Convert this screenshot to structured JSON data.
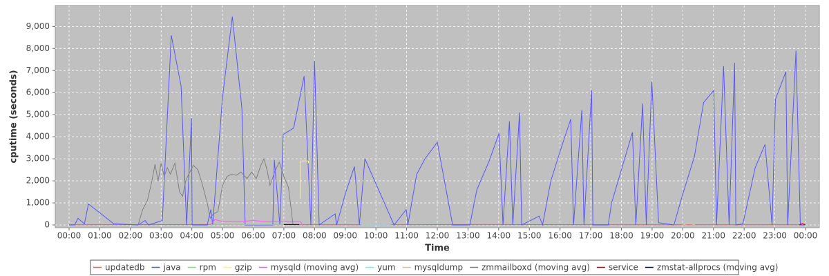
{
  "chart_data": {
    "type": "line",
    "x_label": "Time",
    "y_label": "cputime (seconds)",
    "xlim": [
      -0.45,
      24.45
    ],
    "ylim": [
      -125,
      9950
    ],
    "xticks": [
      {
        "value": 0,
        "label": "00:00"
      },
      {
        "value": 1,
        "label": "01:00"
      },
      {
        "value": 2,
        "label": "02:00"
      },
      {
        "value": 3,
        "label": "03:00"
      },
      {
        "value": 4,
        "label": "04:00"
      },
      {
        "value": 5,
        "label": "05:00"
      },
      {
        "value": 6,
        "label": "06:00"
      },
      {
        "value": 7,
        "label": "07:00"
      },
      {
        "value": 8,
        "label": "08:00"
      },
      {
        "value": 9,
        "label": "09:00"
      },
      {
        "value": 10,
        "label": "10:00"
      },
      {
        "value": 11,
        "label": "11:00"
      },
      {
        "value": 12,
        "label": "12:00"
      },
      {
        "value": 13,
        "label": "13:00"
      },
      {
        "value": 14,
        "label": "14:00"
      },
      {
        "value": 15,
        "label": "15:00"
      },
      {
        "value": 16,
        "label": "16:00"
      },
      {
        "value": 17,
        "label": "17:00"
      },
      {
        "value": 18,
        "label": "18:00"
      },
      {
        "value": 19,
        "label": "19:00"
      },
      {
        "value": 20,
        "label": "20:00"
      },
      {
        "value": 21,
        "label": "21:00"
      },
      {
        "value": 22,
        "label": "22:00"
      },
      {
        "value": 23,
        "label": "23:00"
      },
      {
        "value": 24,
        "label": "00:00"
      }
    ],
    "yticks": [
      0,
      {
        "value": 1000,
        "label": "1,000"
      },
      {
        "value": 2000,
        "label": "2,000"
      },
      {
        "value": 3000,
        "label": "3,000"
      },
      {
        "value": 4000,
        "label": "4,000"
      },
      {
        "value": 5000,
        "label": "5,000"
      },
      {
        "value": 6000,
        "label": "6,000"
      },
      {
        "value": 7000,
        "label": "7,000"
      },
      {
        "value": 8000,
        "label": "8,000"
      },
      {
        "value": 9000,
        "label": "9,000"
      }
    ],
    "grid": true,
    "series": [
      {
        "name": "updatedb",
        "color": "#ff5555",
        "x": [
          0,
          4.5,
          9,
          13.5,
          18,
          24
        ],
        "values": [
          10,
          20,
          10,
          20,
          10,
          10
        ]
      },
      {
        "name": "java",
        "color": "#5555ff",
        "x": [
          0,
          0.18,
          0.29,
          0.5,
          0.63,
          1.46,
          2.25,
          2.48,
          2.59,
          3.04,
          3.33,
          3.65,
          3.83,
          3.99,
          4.01,
          4.28,
          4.5,
          4.62,
          4.68,
          5.0,
          5.32,
          5.63,
          5.74,
          6.64,
          6.69,
          6.87,
          6.98,
          7.32,
          7.66,
          7.88,
          8.0,
          8.15,
          8.67,
          8.72,
          9.01,
          9.3,
          9.46,
          9.64,
          10.59,
          10.99,
          11.04,
          11.33,
          11.6,
          12.0,
          12.5,
          13.06,
          13.29,
          13.69,
          14.01,
          14.14,
          14.35,
          14.46,
          14.68,
          14.75,
          15.32,
          15.43,
          15.7,
          16.04,
          16.35,
          16.44,
          16.71,
          16.78,
          17.03,
          17.07,
          17.57,
          17.68,
          18.36,
          18.47,
          18.69,
          18.81,
          18.99,
          19.21,
          19.71,
          20.0,
          20.38,
          20.68,
          21.01,
          21.1,
          21.33,
          21.51,
          21.69,
          21.73,
          21.96,
          22.36,
          22.68,
          22.91,
          23.02,
          23.36,
          23.42,
          23.69,
          23.83,
          24.0
        ],
        "values": [
          0,
          0,
          300,
          50,
          950,
          50,
          0,
          200,
          0,
          200,
          8600,
          6300,
          0,
          4850,
          0,
          0,
          0,
          700,
          0,
          5800,
          9450,
          5300,
          0,
          0,
          2950,
          0,
          4100,
          4400,
          6750,
          0,
          7450,
          0,
          500,
          0,
          1450,
          2650,
          0,
          3000,
          0,
          700,
          0,
          2300,
          3000,
          3750,
          0,
          0,
          1600,
          2900,
          4150,
          0,
          4700,
          0,
          5100,
          0,
          400,
          0,
          2000,
          3500,
          4800,
          0,
          5200,
          0,
          6100,
          0,
          0,
          1000,
          4200,
          0,
          5500,
          0,
          6500,
          100,
          0,
          1400,
          3100,
          5550,
          6100,
          0,
          7200,
          0,
          7350,
          0,
          50,
          2600,
          3650,
          0,
          5700,
          6950,
          0,
          7900,
          0,
          0
        ]
      },
      {
        "name": "rpm",
        "color": "#55ff55",
        "x": [
          4.6,
          5.0,
          6.0,
          7.0
        ],
        "values": [
          20,
          20,
          20,
          20
        ]
      },
      {
        "name": "gzip",
        "color": "#ffff55",
        "x": [
          7.55,
          7.55,
          7.8,
          7.8
        ],
        "values": [
          1200,
          2900,
          2900,
          2800
        ]
      },
      {
        "name": "mysqld (moving avg)",
        "color": "#ff55ff",
        "x": [
          4.6,
          4.75,
          5.0,
          5.5,
          6.0,
          6.5,
          7.0,
          7.55,
          7.6
        ],
        "values": [
          0,
          250,
          150,
          150,
          200,
          150,
          150,
          150,
          0
        ]
      },
      {
        "name": "yum",
        "color": "#55ffff",
        "x": [
          9.5,
          10.5
        ],
        "values": [
          10,
          10
        ]
      },
      {
        "name": "mysqldump",
        "color": "#ffafaf",
        "x": [
          20.0,
          20.2,
          20.4
        ],
        "values": [
          0,
          60,
          0
        ]
      },
      {
        "name": "zmmailboxd (moving avg)",
        "color": "#808080",
        "x": [
          2.25,
          2.4,
          2.55,
          2.7,
          2.8,
          2.9,
          3.0,
          3.1,
          3.2,
          3.3,
          3.45,
          3.6,
          3.7,
          3.8,
          3.9,
          4.05,
          4.2,
          4.35,
          4.5,
          4.6,
          4.7,
          4.85,
          5.0,
          5.15,
          5.3,
          5.45,
          5.6,
          5.8,
          5.95,
          6.1,
          6.25,
          6.35,
          6.45,
          6.55,
          6.7,
          6.85,
          7.0,
          7.15,
          7.3
        ],
        "values": [
          0,
          700,
          1100,
          2000,
          2750,
          2000,
          2800,
          2200,
          2600,
          2300,
          2800,
          1500,
          1300,
          2000,
          2300,
          2700,
          2500,
          1800,
          1000,
          300,
          500,
          600,
          1800,
          2200,
          2300,
          2250,
          2400,
          2100,
          2400,
          2100,
          2700,
          3000,
          2500,
          1800,
          2400,
          2850,
          2200,
          1700,
          0
        ]
      },
      {
        "name": "service",
        "color": "#c00000",
        "x": [
          23.8,
          23.9,
          24.0
        ],
        "values": [
          0,
          60,
          0
        ]
      },
      {
        "name": "zmstat-allprocs (moving avg)",
        "color": "#000080",
        "x": [
          7.0,
          7.5
        ],
        "values": [
          20,
          20
        ]
      }
    ]
  }
}
